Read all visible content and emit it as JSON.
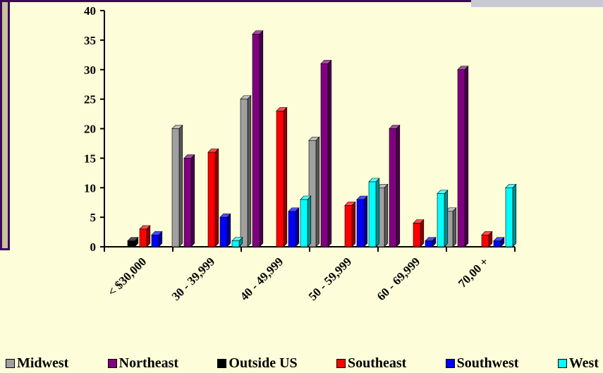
{
  "theme": {
    "background": "#fdfdd9",
    "frame_dark": "#3a0a5a",
    "frame_light": "#c6c39a",
    "accent_bar": "#c9c9d6"
  },
  "chart_data": {
    "type": "bar",
    "categories": [
      "< $30,000",
      "30 - 39,999",
      "40 - 49,999",
      "50 - 59,999",
      "60 - 69,999",
      "70,00 +"
    ],
    "series": [
      {
        "name": "Midwest",
        "color": "#a0a0a0",
        "values": [
          0,
          20,
          25,
          18,
          10,
          6
        ]
      },
      {
        "name": "Northeast",
        "color": "#800080",
        "values": [
          0,
          15,
          36,
          31,
          20,
          30
        ]
      },
      {
        "name": "Outside US",
        "color": "#000000",
        "values": [
          1,
          0,
          0,
          0,
          0,
          0
        ]
      },
      {
        "name": "Southeast",
        "color": "#ff0000",
        "values": [
          3,
          16,
          23,
          7,
          4,
          2
        ]
      },
      {
        "name": "Southwest",
        "color": "#0000ff",
        "values": [
          2,
          5,
          6,
          8,
          1,
          1
        ]
      },
      {
        "name": "West",
        "color": "#00ffff",
        "values": [
          0,
          1,
          8,
          11,
          9,
          10
        ]
      }
    ],
    "ylim": [
      0,
      40
    ],
    "yticks": [
      0,
      5,
      10,
      15,
      20,
      25,
      30,
      35,
      40
    ],
    "legend_position": "bottom",
    "grid": false
  }
}
